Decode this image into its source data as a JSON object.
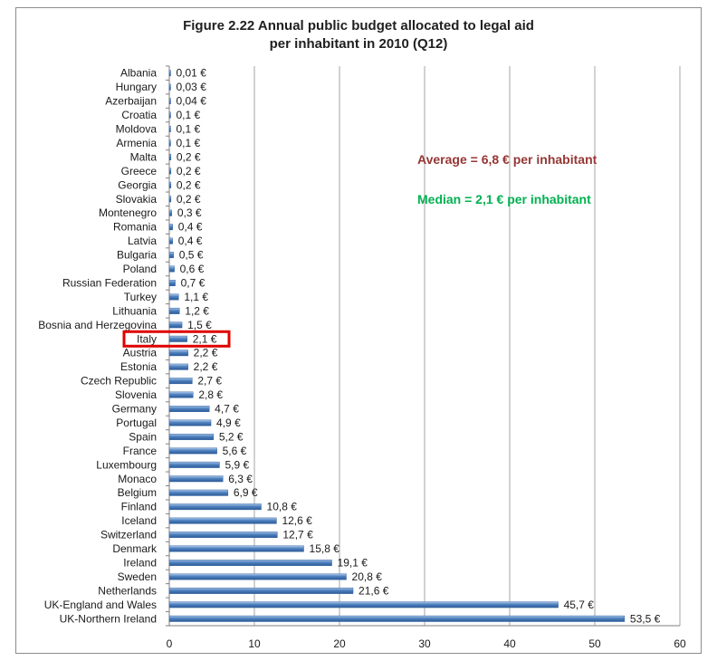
{
  "chart_data": {
    "type": "bar",
    "orientation": "horizontal",
    "title": "Figure 2.22 Annual public budget allocated to legal aid per inhabitant in 2010 (Q12)",
    "title_lines": [
      "Figure 2.22 Annual public budget allocated to legal aid",
      "per inhabitant in 2010 (Q12)"
    ],
    "categories": [
      "Albania",
      "Hungary",
      "Azerbaijan",
      "Croatia",
      "Moldova",
      "Armenia",
      "Malta",
      "Greece",
      "Georgia",
      "Slovakia",
      "Montenegro",
      "Romania",
      "Latvia",
      "Bulgaria",
      "Poland",
      "Russian Federation",
      "Turkey",
      "Lithuania",
      "Bosnia and Herzegovina",
      "Italy",
      "Austria",
      "Estonia",
      "Czech Republic",
      "Slovenia",
      "Germany",
      "Portugal",
      "Spain",
      "France",
      "Luxembourg",
      "Monaco",
      "Belgium",
      "Finland",
      "Iceland",
      "Switzerland",
      "Denmark",
      "Ireland",
      "Sweden",
      "Netherlands",
      "UK-England and Wales",
      "UK-Northern Ireland"
    ],
    "values": [
      0.01,
      0.03,
      0.04,
      0.1,
      0.1,
      0.1,
      0.2,
      0.2,
      0.2,
      0.2,
      0.3,
      0.4,
      0.4,
      0.5,
      0.6,
      0.7,
      1.1,
      1.2,
      1.5,
      2.1,
      2.2,
      2.2,
      2.7,
      2.8,
      4.7,
      4.9,
      5.2,
      5.6,
      5.9,
      6.3,
      6.9,
      10.8,
      12.6,
      12.7,
      15.8,
      19.1,
      20.8,
      21.6,
      45.7,
      53.5
    ],
    "value_labels": [
      "0,01 €",
      "0,03 €",
      "0,04 €",
      "0,1 €",
      "0,1 €",
      "0,1 €",
      "0,2 €",
      "0,2 €",
      "0,2 €",
      "0,2 €",
      "0,3 €",
      "0,4 €",
      "0,4 €",
      "0,5 €",
      "0,6 €",
      "0,7 €",
      "1,1 €",
      "1,2 €",
      "1,5 €",
      "2,1 €",
      "2,2 €",
      "2,2 €",
      "2,7 €",
      "2,8 €",
      "4,7 €",
      "4,9 €",
      "5,2 €",
      "5,6 €",
      "5,9 €",
      "6,3 €",
      "6,9 €",
      "10,8 €",
      "12,6 €",
      "12,7 €",
      "15,8 €",
      "19,1 €",
      "20,8 €",
      "21,6 €",
      "45,7 €",
      "53,5 €"
    ],
    "xlim": [
      0,
      60
    ],
    "xticks": [
      0,
      10,
      20,
      30,
      40,
      50,
      60
    ],
    "grid": true,
    "highlight": "Italy",
    "annotations": [
      {
        "text": "Average = 6,8 € per inhabitant",
        "color": "#953735"
      },
      {
        "text": "Median = 2,1 € per inhabitant",
        "color": "#00b050"
      }
    ],
    "colors": {
      "bar": "#4f81bd",
      "bar_dark": "#2c5a99",
      "bar_light": "#a9c6ec",
      "highlight_box": "#e00000",
      "grid": "#a6a6a6"
    }
  }
}
